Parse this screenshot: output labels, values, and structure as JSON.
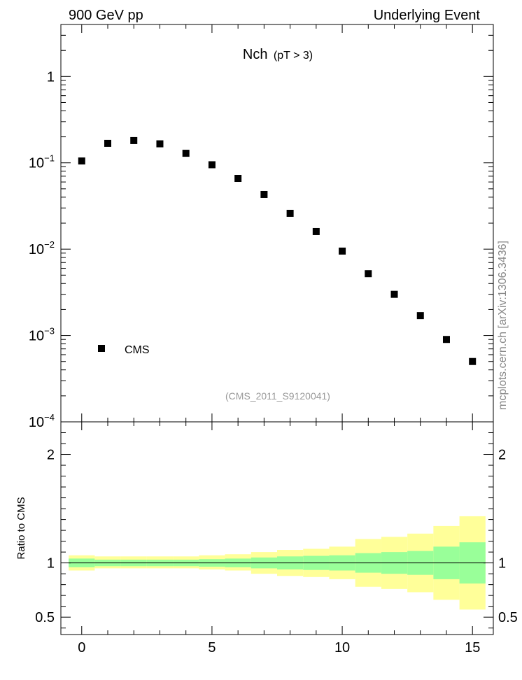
{
  "header": {
    "left": "900 GeV pp",
    "right": "Underlying Event"
  },
  "side_label": "mcplots.cern.ch [arXiv:1306.3436]",
  "colors": {
    "band_outer": "#ffff99",
    "band_inner": "#99ff99",
    "marker": "#000000",
    "watermark": "#999999"
  },
  "chart_data": [
    {
      "type": "scatter",
      "title_main": "Nch",
      "title_sub": "(pT >  3)",
      "watermark": "(CMS_2011_S9120041)",
      "yscale": "log",
      "xlim": [
        -0.8,
        15.8
      ],
      "ylim": [
        0.0001,
        4.0
      ],
      "yticks": [
        {
          "v": 1,
          "label": "1"
        },
        {
          "v": 0.1,
          "base": "10",
          "exp": "−1"
        },
        {
          "v": 0.01,
          "base": "10",
          "exp": "−2"
        },
        {
          "v": 0.001,
          "base": "10",
          "exp": "−3"
        },
        {
          "v": 0.0001,
          "base": "10",
          "exp": "−4"
        }
      ],
      "legend": {
        "label": "CMS",
        "position": "bottom-left"
      },
      "series": [
        {
          "name": "CMS",
          "x": [
            0,
            1,
            2,
            3,
            4,
            5,
            6,
            7,
            8,
            9,
            10,
            11,
            12,
            13,
            14,
            15
          ],
          "y": [
            0.105,
            0.168,
            0.181,
            0.166,
            0.129,
            0.095,
            0.066,
            0.043,
            0.026,
            0.016,
            0.0095,
            0.0052,
            0.003,
            0.0017,
            0.0009,
            0.0005
          ]
        }
      ]
    },
    {
      "type": "area",
      "ylabel": "Ratio to CMS",
      "xlim": [
        -0.8,
        15.8
      ],
      "ylim": [
        0.34,
        2.3
      ],
      "xticks": [
        0,
        5,
        10,
        15
      ],
      "yticks": [
        0.5,
        1,
        2
      ],
      "reference_line": 1,
      "bins": [
        {
          "x0": -0.5,
          "x1": 0.5,
          "outer": [
            0.93,
            1.07
          ],
          "inner": [
            0.96,
            1.04
          ]
        },
        {
          "x0": 0.5,
          "x1": 1.5,
          "outer": [
            0.95,
            1.06
          ],
          "inner": [
            0.97,
            1.03
          ]
        },
        {
          "x0": 1.5,
          "x1": 2.5,
          "outer": [
            0.95,
            1.06
          ],
          "inner": [
            0.97,
            1.03
          ]
        },
        {
          "x0": 2.5,
          "x1": 3.5,
          "outer": [
            0.95,
            1.06
          ],
          "inner": [
            0.97,
            1.03
          ]
        },
        {
          "x0": 3.5,
          "x1": 4.5,
          "outer": [
            0.95,
            1.06
          ],
          "inner": [
            0.97,
            1.03
          ]
        },
        {
          "x0": 4.5,
          "x1": 5.5,
          "outer": [
            0.94,
            1.07
          ],
          "inner": [
            0.965,
            1.035
          ]
        },
        {
          "x0": 5.5,
          "x1": 6.5,
          "outer": [
            0.93,
            1.08
          ],
          "inner": [
            0.96,
            1.04
          ]
        },
        {
          "x0": 6.5,
          "x1": 7.5,
          "outer": [
            0.9,
            1.1
          ],
          "inner": [
            0.95,
            1.05
          ]
        },
        {
          "x0": 7.5,
          "x1": 8.5,
          "outer": [
            0.88,
            1.12
          ],
          "inner": [
            0.94,
            1.06
          ]
        },
        {
          "x0": 8.5,
          "x1": 9.5,
          "outer": [
            0.87,
            1.13
          ],
          "inner": [
            0.935,
            1.065
          ]
        },
        {
          "x0": 9.5,
          "x1": 10.5,
          "outer": [
            0.85,
            1.15
          ],
          "inner": [
            0.93,
            1.07
          ]
        },
        {
          "x0": 10.5,
          "x1": 11.5,
          "outer": [
            0.78,
            1.22
          ],
          "inner": [
            0.91,
            1.09
          ]
        },
        {
          "x0": 11.5,
          "x1": 12.5,
          "outer": [
            0.76,
            1.24
          ],
          "inner": [
            0.9,
            1.1
          ]
        },
        {
          "x0": 12.5,
          "x1": 13.5,
          "outer": [
            0.73,
            1.27
          ],
          "inner": [
            0.89,
            1.11
          ]
        },
        {
          "x0": 13.5,
          "x1": 14.5,
          "outer": [
            0.66,
            1.34
          ],
          "inner": [
            0.85,
            1.15
          ]
        },
        {
          "x0": 14.5,
          "x1": 15.5,
          "outer": [
            0.57,
            1.43
          ],
          "inner": [
            0.81,
            1.19
          ]
        }
      ]
    }
  ]
}
